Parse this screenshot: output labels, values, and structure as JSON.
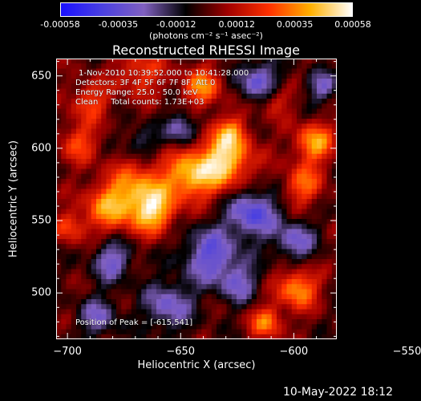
{
  "chart_data": {
    "type": "heatmap",
    "title": "Reconstructed RHESSI Image",
    "xlabel": "Heliocentric X (arcsec)",
    "ylabel": "Heliocentric Y (arcsec)",
    "xlim": [
      -705,
      -581
    ],
    "ylim": [
      468,
      662
    ],
    "x_ticks": [
      -700,
      -650,
      -600,
      -550
    ],
    "y_ticks": [
      500,
      550,
      600,
      650
    ],
    "colorbar": {
      "ticks": [
        "-0.00058",
        "-0.00035",
        "-0.00012",
        "0.00012",
        "0.00035",
        "0.00058"
      ],
      "range": [
        -0.00058,
        0.00058
      ],
      "unit_label": "(photons cm⁻² s⁻¹ asec⁻²)",
      "colors": [
        "#1a10ff",
        "#4a40e0",
        "#8060c0",
        "#000000",
        "#a00000",
        "#ff3000",
        "#ffb000",
        "#ffffff"
      ]
    },
    "annotations": [
      "1-Nov-2010 10:39:52.000 to 10:41:28.000",
      "Detectors: 3F 4F 5F 6F 7F 8F, Att 0",
      "Energy Range: 25.0 - 50.0 keV",
      "Clean     Total counts: 1.73E+03",
      "Position of Peak = [-615,541]"
    ],
    "peak_position": [
      -615,
      541
    ],
    "grid": false
  },
  "timestamp": "10-May-2022 18:12"
}
